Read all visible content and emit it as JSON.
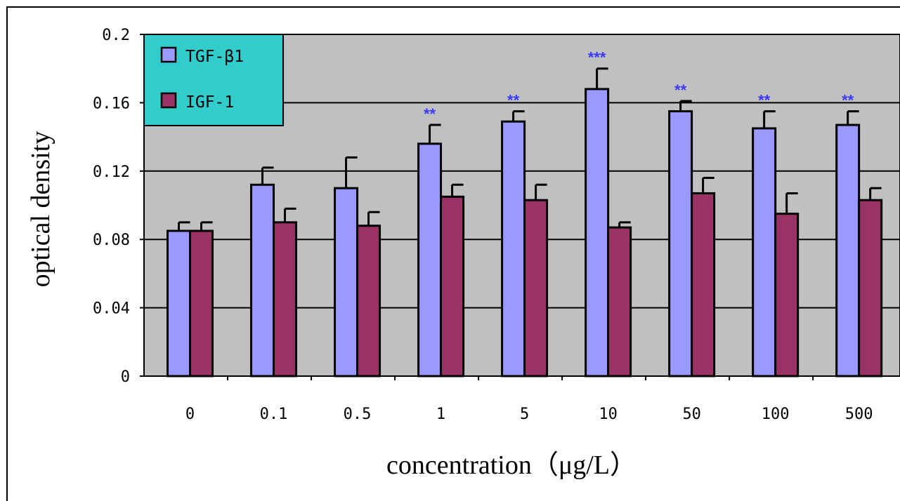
{
  "chart_data": {
    "type": "bar",
    "xlabel": "concentration（μg/L）",
    "ylabel": "optical density",
    "categories": [
      "0",
      "0.1",
      "0.5",
      "1",
      "5",
      "10",
      "50",
      "100",
      "500"
    ],
    "ylim": [
      0,
      0.2
    ],
    "yticks": [
      "0",
      "0.04",
      "0.08",
      "0.12",
      "0.16",
      "0.2"
    ],
    "grid": true,
    "legend_position": "top-left",
    "series": [
      {
        "name": "TGF-β1",
        "color": "#9999ff",
        "values": [
          0.085,
          0.112,
          0.11,
          0.136,
          0.149,
          0.168,
          0.155,
          0.145,
          0.147
        ],
        "errors": [
          0.005,
          0.01,
          0.018,
          0.011,
          0.006,
          0.012,
          0.006,
          0.01,
          0.008
        ],
        "significance": [
          "",
          "",
          "",
          "**",
          "**",
          "***",
          "**",
          "**",
          "**"
        ]
      },
      {
        "name": "IGF-1",
        "color": "#993366",
        "values": [
          0.085,
          0.09,
          0.088,
          0.105,
          0.103,
          0.087,
          0.107,
          0.095,
          0.103
        ],
        "errors": [
          0.005,
          0.008,
          0.008,
          0.007,
          0.009,
          0.003,
          0.009,
          0.012,
          0.007
        ],
        "significance": [
          "",
          "",
          "",
          "",
          "",
          "",
          "",
          "",
          ""
        ]
      }
    ],
    "colors": {
      "plot_background": "#c0c0c0",
      "legend_background": "#33cccc",
      "gridline": "#000000",
      "significance": "#3a3aff"
    }
  }
}
